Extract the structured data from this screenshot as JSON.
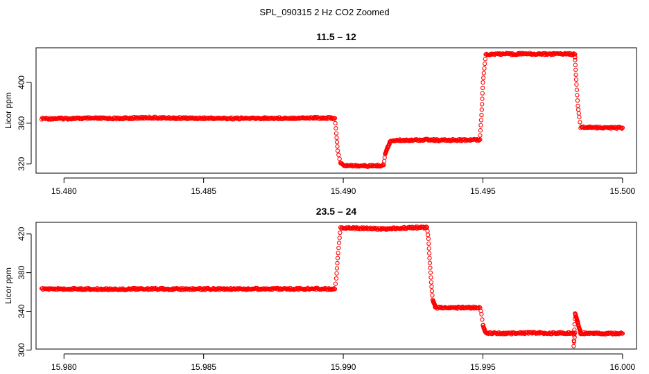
{
  "figure_title": "SPL_090315  2 Hz CO2 Zoomed",
  "chart_data": [
    {
      "type": "scatter",
      "title": "11.5 – 12",
      "xlabel": "",
      "ylabel": "Licor ppm",
      "xlim": [
        15.479,
        15.5005
      ],
      "ylim": [
        311,
        434
      ],
      "xticks": [
        15.48,
        15.485,
        15.49,
        15.495,
        15.5
      ],
      "xtick_labels": [
        "15.480",
        "15.485",
        "15.490",
        "15.495",
        "15.500"
      ],
      "yticks": [
        320,
        360,
        400
      ],
      "ytick_labels": [
        "320",
        "360",
        "400"
      ],
      "marker": "open-circle",
      "color": "#ff0000",
      "grid": false,
      "series": [
        {
          "x": [
            15.4792,
            15.48,
            15.481,
            15.482,
            15.483,
            15.484,
            15.485,
            15.486,
            15.487,
            15.488,
            15.489,
            15.4897,
            15.48975,
            15.4898,
            15.4899,
            15.49,
            15.4905,
            15.491,
            15.4914,
            15.49145,
            15.4915,
            15.4916,
            15.4917,
            15.492,
            15.4925,
            15.493,
            15.4935,
            15.494,
            15.4945,
            15.4949,
            15.4949,
            15.49495,
            15.495,
            15.4951,
            15.4955,
            15.496,
            15.4965,
            15.497,
            15.4975,
            15.498,
            15.4983,
            15.4983,
            15.49835,
            15.4984,
            15.49845,
            15.4985,
            15.499,
            15.4995,
            15.5
          ],
          "y": [
            364.5,
            364.6,
            364.8,
            364.7,
            365.5,
            365.0,
            364.9,
            364.7,
            364.8,
            365.0,
            365.3,
            365.0,
            350,
            333,
            321,
            318.5,
            318.3,
            318.1,
            318.6,
            319,
            330,
            337,
            343.0,
            343.2,
            343.5,
            343.8,
            343.1,
            343.5,
            343.4,
            344.0,
            348,
            368,
            400,
            427.5,
            428.0,
            427.8,
            428.2,
            427.9,
            428.0,
            428.3,
            427.5,
            422,
            398,
            377,
            366,
            356.0,
            355.8,
            355.6,
            355.5
          ]
        }
      ]
    },
    {
      "type": "scatter",
      "title": "23.5 – 24",
      "xlabel": "",
      "ylabel": "Licor ppm",
      "xlim": [
        15.979,
        16.0005
      ],
      "ylim": [
        301,
        432
      ],
      "xticks": [
        15.98,
        15.985,
        15.99,
        15.995,
        16.0
      ],
      "xtick_labels": [
        "15.980",
        "15.985",
        "15.990",
        "15.995",
        "16.000"
      ],
      "yticks": [
        300,
        340,
        380,
        420
      ],
      "ytick_labels": [
        "300",
        "340",
        "380",
        "420"
      ],
      "marker": "open-circle",
      "color": "#ff0000",
      "grid": false,
      "series": [
        {
          "x": [
            15.9792,
            15.98,
            15.981,
            15.982,
            15.983,
            15.984,
            15.985,
            15.986,
            15.987,
            15.988,
            15.989,
            15.9897,
            15.98975,
            15.9898,
            15.9899,
            15.9905,
            15.991,
            15.9915,
            15.992,
            15.9925,
            15.993,
            15.99305,
            15.9931,
            15.99315,
            15.9932,
            15.9933,
            15.9938,
            15.9943,
            15.9949,
            15.99495,
            15.995,
            15.9951,
            15.9955,
            15.996,
            15.9965,
            15.997,
            15.9975,
            15.998,
            15.9983,
            15.99825,
            15.9983,
            15.9984,
            15.9985,
            15.999,
            15.9995,
            16.0
          ],
          "y": [
            363.0,
            363.1,
            363.0,
            362.9,
            363.2,
            363.0,
            363.1,
            363.0,
            363.2,
            363.1,
            363.3,
            363.0,
            374,
            395,
            426.5,
            426.0,
            425.5,
            425.2,
            426.0,
            426.4,
            426.8,
            415,
            390,
            370,
            352,
            343.8,
            343.5,
            344.0,
            343.7,
            337,
            326,
            317.5,
            317.4,
            317.2,
            317.6,
            317.5,
            317.3,
            317.6,
            317.8,
            304,
            338,
            328,
            317.4,
            317.2,
            317.0,
            317.1
          ]
        }
      ]
    }
  ]
}
